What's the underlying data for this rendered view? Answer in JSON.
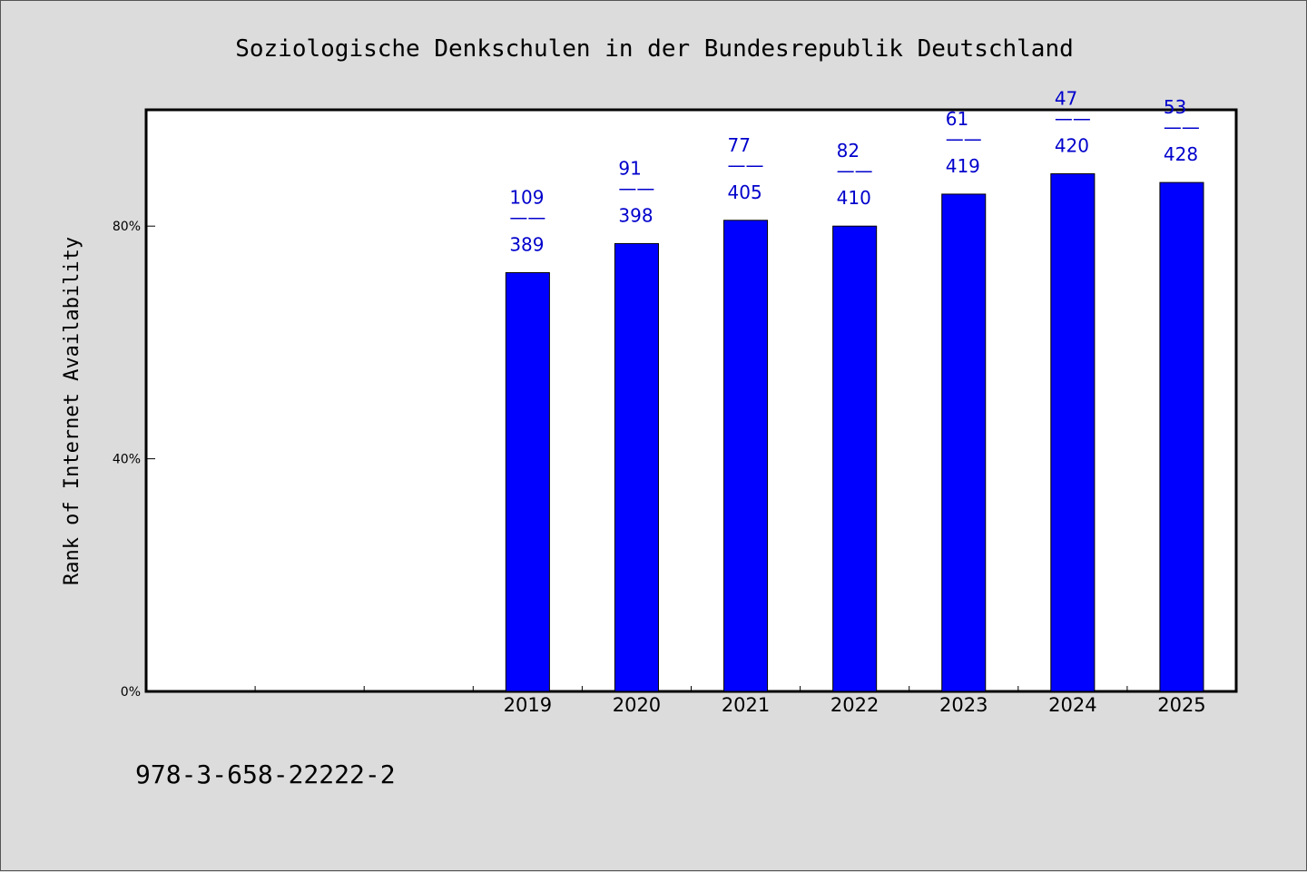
{
  "chart_data": {
    "type": "bar",
    "title": "Soziologische Denkschulen in der Bundesrepublik Deutschland",
    "ylabel": "Rank of Internet Availability",
    "xlabel": "",
    "categories": [
      "",
      "",
      "",
      "2019",
      "2020",
      "2021",
      "2022",
      "2023",
      "2024",
      "2025"
    ],
    "values": [
      null,
      null,
      null,
      72,
      77,
      81,
      80,
      85.5,
      89,
      87.5
    ],
    "ylim": [
      0,
      100
    ],
    "yticks": [
      {
        "value": 0,
        "label": "0%"
      },
      {
        "value": 40,
        "label": "40%"
      },
      {
        "value": 80,
        "label": "80%"
      }
    ],
    "data_labels": [
      null,
      null,
      null,
      {
        "top": "109",
        "sep": "——",
        "bottom": "389"
      },
      {
        "top": "91",
        "sep": "——",
        "bottom": "398"
      },
      {
        "top": "77",
        "sep": "——",
        "bottom": "405"
      },
      {
        "top": "82",
        "sep": "——",
        "bottom": "410"
      },
      {
        "top": "61",
        "sep": "——",
        "bottom": "419"
      },
      {
        "top": "47",
        "sep": "——",
        "bottom": "420"
      },
      {
        "top": "53",
        "sep": "——",
        "bottom": "428"
      }
    ],
    "bar_color": "#0000ff",
    "label_color": "#0000cc",
    "grid": false,
    "legend": "none"
  },
  "footnote": "978-3-658-22222-2",
  "colors": {
    "background": "#dcdcdc",
    "plot_background": "#ffffff"
  }
}
